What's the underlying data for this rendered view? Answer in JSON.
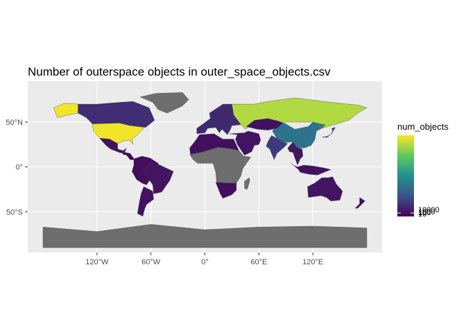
{
  "title": "Number of outerspace objects in outer_space_objects.csv",
  "chart_data": {
    "type": "choropleth",
    "title": "Number of outerspace objects in outer_space_objects.csv",
    "xlabel": "",
    "ylabel": "",
    "x_ticks": [
      {
        "value": -120,
        "label": "120°W"
      },
      {
        "value": -60,
        "label": "60°W"
      },
      {
        "value": 0,
        "label": "0°"
      },
      {
        "value": 60,
        "label": "60°E"
      },
      {
        "value": 120,
        "label": "120°E"
      }
    ],
    "y_ticks": [
      {
        "value": 50,
        "label": "50°N"
      },
      {
        "value": 0,
        "label": "0°"
      },
      {
        "value": -50,
        "label": "50°S"
      }
    ],
    "xlim": [
      -180,
      180
    ],
    "ylim": [
      -90,
      84
    ],
    "grid": true,
    "legend": {
      "title": "num_objects",
      "placement": "right",
      "colors": [
        "#440154",
        "#3b528b",
        "#21918c",
        "#5ec962",
        "#fde725"
      ],
      "labels": [
        "10000",
        "1000",
        "100",
        "10"
      ]
    },
    "missing_color": "#6e6e6e",
    "background_color": "#ebebeb",
    "regions": [
      {
        "name": "United States",
        "level": 0.98
      },
      {
        "name": "Alaska",
        "level": 0.98
      },
      {
        "name": "Canada",
        "level": 0.14
      },
      {
        "name": "Mexico",
        "level": 0.05
      },
      {
        "name": "Central America",
        "level": 0.02
      },
      {
        "name": "South America",
        "level": 0.04
      },
      {
        "name": "Brazil",
        "level": 0.06
      },
      {
        "name": "Argentina",
        "level": 0.05
      },
      {
        "name": "Greenland",
        "level": null
      },
      {
        "name": "Europe",
        "level": 0.12
      },
      {
        "name": "Russia",
        "level": 0.88
      },
      {
        "name": "China",
        "level": 0.38
      },
      {
        "name": "Japan",
        "level": 0.18
      },
      {
        "name": "India",
        "level": 0.18
      },
      {
        "name": "Middle East",
        "level": 0.06
      },
      {
        "name": "Kazakhstan",
        "level": 0.05
      },
      {
        "name": "Southeast Asia",
        "level": 0.07
      },
      {
        "name": "Indonesia",
        "level": 0.05
      },
      {
        "name": "Australia",
        "level": 0.06
      },
      {
        "name": "New Zealand",
        "level": 0.04
      },
      {
        "name": "North Africa",
        "level": 0.04
      },
      {
        "name": "Africa interior",
        "level": null
      },
      {
        "name": "Southern Africa",
        "level": 0.04
      },
      {
        "name": "Madagascar",
        "level": null
      },
      {
        "name": "Antarctica",
        "level": null
      }
    ]
  }
}
